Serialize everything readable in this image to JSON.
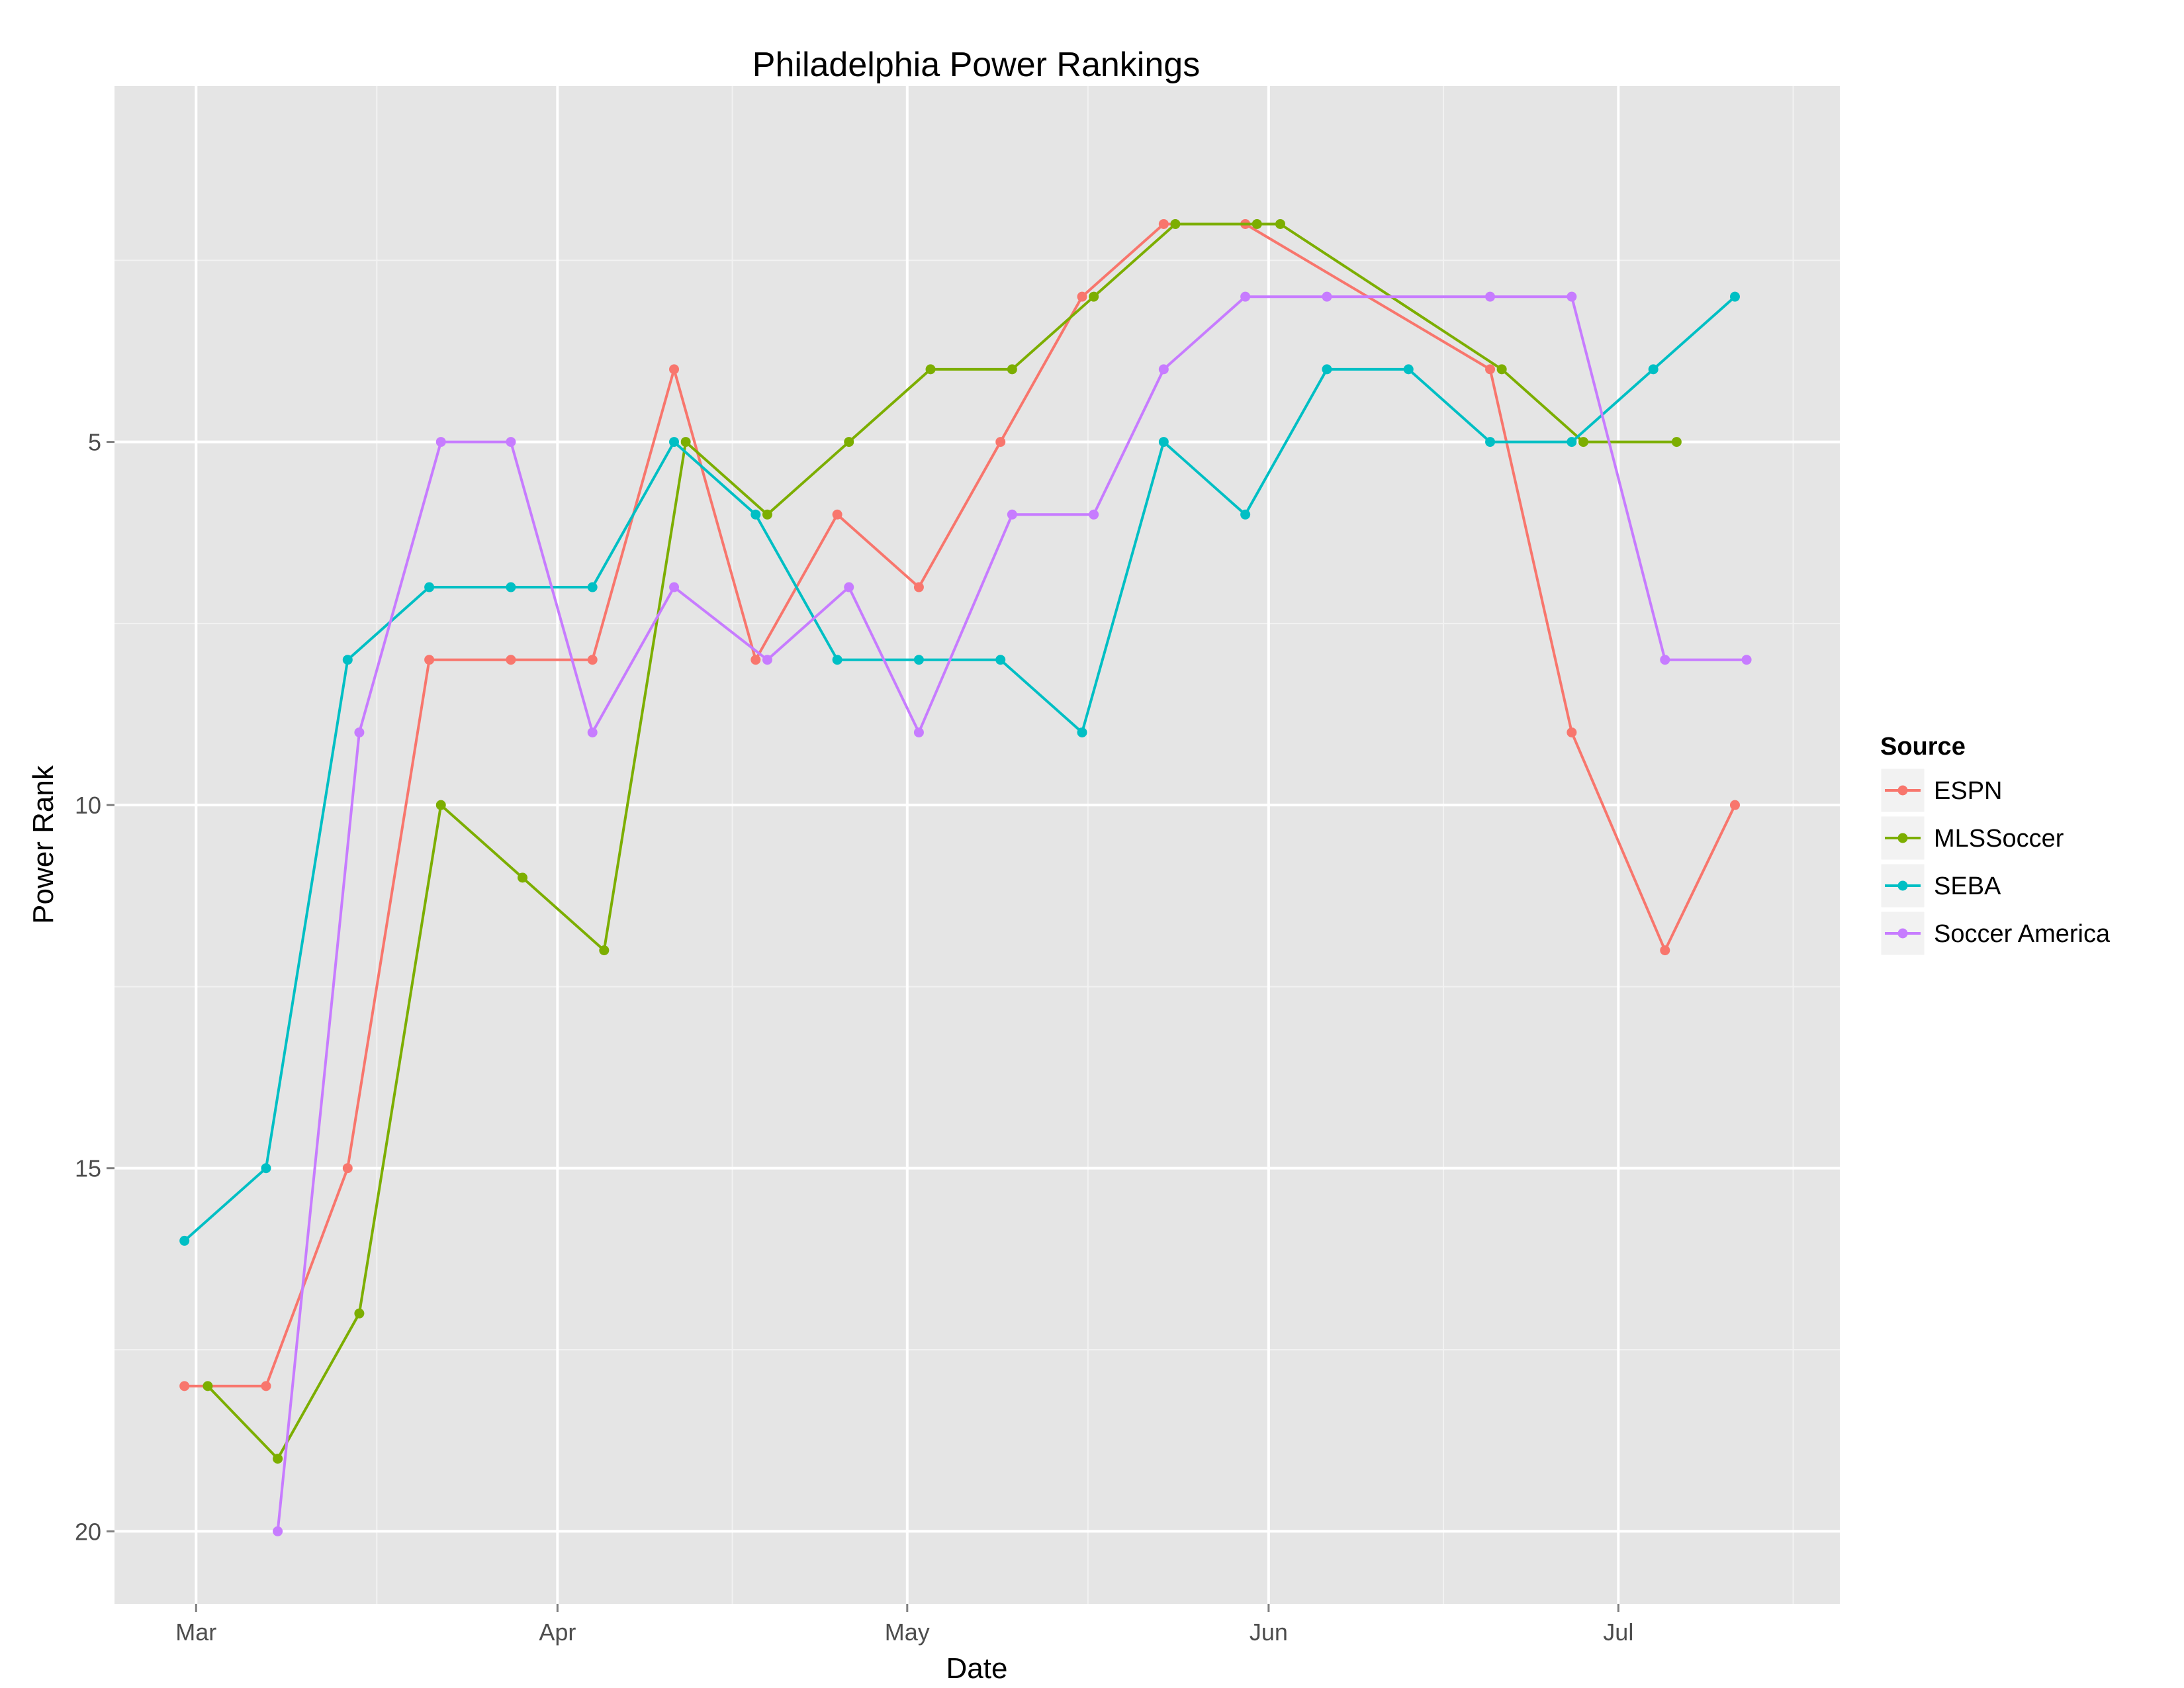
{
  "chart_data": {
    "type": "line",
    "title": "Philadelphia Power Rankings",
    "xlabel": "Date",
    "ylabel": "Power Rank",
    "x_ticks": [
      {
        "label": "Mar",
        "date": "2015-03-01"
      },
      {
        "label": "Apr",
        "date": "2015-04-01"
      },
      {
        "label": "May",
        "date": "2015-05-01"
      },
      {
        "label": "Jun",
        "date": "2015-06-01"
      },
      {
        "label": "Jul",
        "date": "2015-07-01"
      }
    ],
    "xlim": [
      "2015-02-22",
      "2015-07-20"
    ],
    "y_ticks": [
      5,
      10,
      15,
      20
    ],
    "ylim": [
      0.1,
      21.0
    ],
    "y_reversed": true,
    "grid": true,
    "legend": {
      "title": "Source",
      "position": "right"
    },
    "series": [
      {
        "name": "ESPN",
        "color": "#F8766D",
        "points": [
          {
            "x": "2015-02-28",
            "y": 18
          },
          {
            "x": "2015-03-07",
            "y": 18
          },
          {
            "x": "2015-03-14",
            "y": 15
          },
          {
            "x": "2015-03-21",
            "y": 8
          },
          {
            "x": "2015-03-28",
            "y": 8
          },
          {
            "x": "2015-04-04",
            "y": 8
          },
          {
            "x": "2015-04-11",
            "y": 4
          },
          {
            "x": "2015-04-18",
            "y": 8
          },
          {
            "x": "2015-04-25",
            "y": 6
          },
          {
            "x": "2015-05-02",
            "y": 7
          },
          {
            "x": "2015-05-09",
            "y": 5
          },
          {
            "x": "2015-05-16",
            "y": 3
          },
          {
            "x": "2015-05-23",
            "y": 2
          },
          {
            "x": "2015-05-30",
            "y": 2
          },
          {
            "x": "2015-06-20",
            "y": 4
          },
          {
            "x": "2015-06-27",
            "y": 9
          },
          {
            "x": "2015-07-05",
            "y": 12
          },
          {
            "x": "2015-07-11",
            "y": 10
          }
        ]
      },
      {
        "name": "MLSSoccer",
        "color": "#7CAE00",
        "points": [
          {
            "x": "2015-03-02",
            "y": 18
          },
          {
            "x": "2015-03-08",
            "y": 19
          },
          {
            "x": "2015-03-15",
            "y": 17
          },
          {
            "x": "2015-03-22",
            "y": 10
          },
          {
            "x": "2015-03-29",
            "y": 11
          },
          {
            "x": "2015-04-05",
            "y": 12
          },
          {
            "x": "2015-04-12",
            "y": 5
          },
          {
            "x": "2015-04-19",
            "y": 6
          },
          {
            "x": "2015-04-26",
            "y": 5
          },
          {
            "x": "2015-05-03",
            "y": 4
          },
          {
            "x": "2015-05-10",
            "y": 4
          },
          {
            "x": "2015-05-17",
            "y": 3
          },
          {
            "x": "2015-05-24",
            "y": 2
          },
          {
            "x": "2015-05-31",
            "y": 2
          },
          {
            "x": "2015-06-02",
            "y": 2
          },
          {
            "x": "2015-06-21",
            "y": 4
          },
          {
            "x": "2015-06-28",
            "y": 5
          },
          {
            "x": "2015-07-06",
            "y": 5
          }
        ]
      },
      {
        "name": "SEBA",
        "color": "#00BFC4",
        "points": [
          {
            "x": "2015-02-28",
            "y": 16
          },
          {
            "x": "2015-03-07",
            "y": 15
          },
          {
            "x": "2015-03-14",
            "y": 8
          },
          {
            "x": "2015-03-21",
            "y": 7
          },
          {
            "x": "2015-03-28",
            "y": 7
          },
          {
            "x": "2015-04-04",
            "y": 7
          },
          {
            "x": "2015-04-11",
            "y": 5
          },
          {
            "x": "2015-04-18",
            "y": 6
          },
          {
            "x": "2015-04-25",
            "y": 8
          },
          {
            "x": "2015-05-02",
            "y": 8
          },
          {
            "x": "2015-05-09",
            "y": 8
          },
          {
            "x": "2015-05-16",
            "y": 9
          },
          {
            "x": "2015-05-23",
            "y": 5
          },
          {
            "x": "2015-05-30",
            "y": 6
          },
          {
            "x": "2015-06-06",
            "y": 4
          },
          {
            "x": "2015-06-13",
            "y": 4
          },
          {
            "x": "2015-06-20",
            "y": 5
          },
          {
            "x": "2015-06-27",
            "y": 5
          },
          {
            "x": "2015-07-04",
            "y": 4
          },
          {
            "x": "2015-07-11",
            "y": 3
          }
        ]
      },
      {
        "name": "Soccer America",
        "color": "#C77CFF",
        "points": [
          {
            "x": "2015-03-08",
            "y": 20
          },
          {
            "x": "2015-03-15",
            "y": 9
          },
          {
            "x": "2015-03-22",
            "y": 5
          },
          {
            "x": "2015-03-28",
            "y": 5
          },
          {
            "x": "2015-04-04",
            "y": 9
          },
          {
            "x": "2015-04-11",
            "y": 7
          },
          {
            "x": "2015-04-19",
            "y": 8
          },
          {
            "x": "2015-04-26",
            "y": 7
          },
          {
            "x": "2015-05-02",
            "y": 9
          },
          {
            "x": "2015-05-10",
            "y": 6
          },
          {
            "x": "2015-05-17",
            "y": 6
          },
          {
            "x": "2015-05-23",
            "y": 4
          },
          {
            "x": "2015-05-30",
            "y": 3
          },
          {
            "x": "2015-06-06",
            "y": 3
          },
          {
            "x": "2015-06-20",
            "y": 3
          },
          {
            "x": "2015-06-27",
            "y": 3
          },
          {
            "x": "2015-07-05",
            "y": 8
          },
          {
            "x": "2015-07-12",
            "y": 8
          }
        ]
      }
    ]
  },
  "style": {
    "panel_bg": "#E5E5E5",
    "grid_major": "#FFFFFF",
    "grid_minor": "#F2F2F2",
    "legend_key_bg": "#F2F2F2"
  }
}
